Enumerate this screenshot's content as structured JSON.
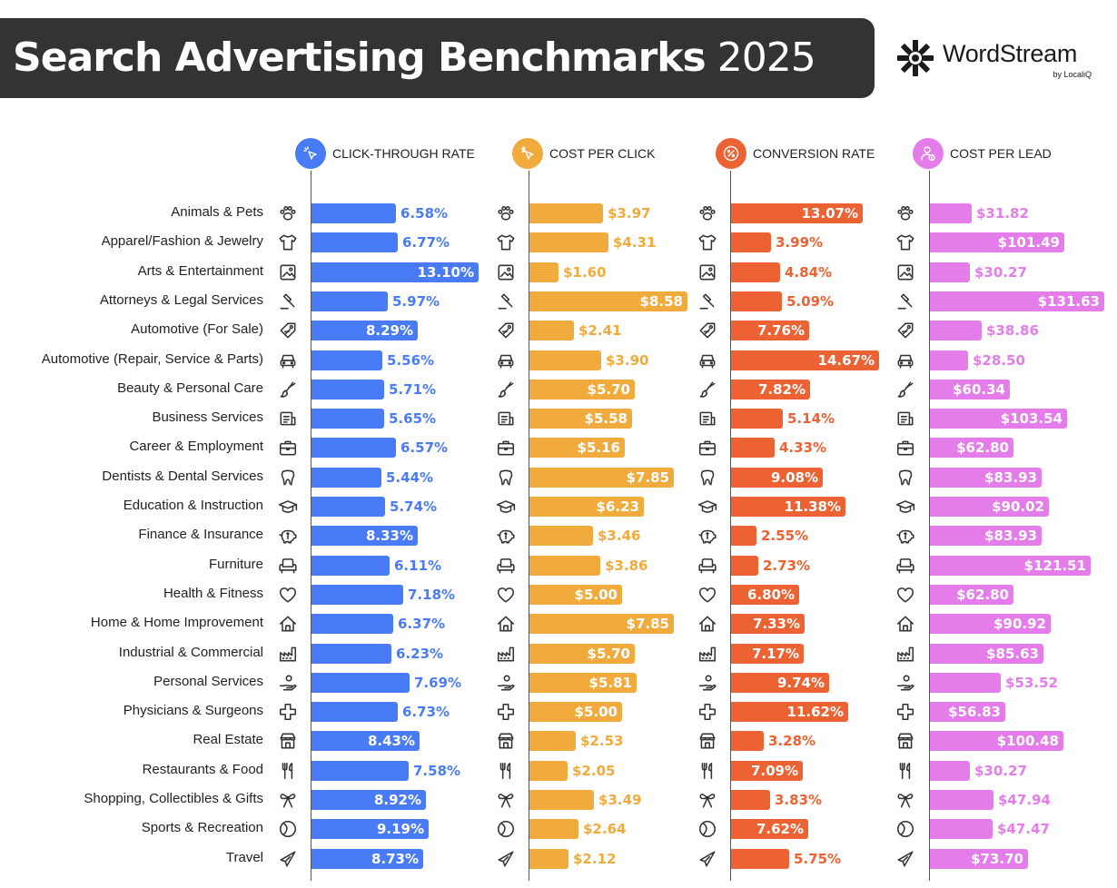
{
  "header": {
    "title_bold": "Search Advertising Benchmarks",
    "title_year": "2025",
    "logo_name": "WordStream",
    "logo_sub": "by LocaliQ"
  },
  "colors": {
    "header_bg": "#333333",
    "ctr": "#4a7bf7",
    "cpc": "#f0ab3c",
    "cr": "#ec6232",
    "cpl": "#e47de9"
  },
  "chart_data": {
    "type": "bar",
    "orientation": "horizontal",
    "title": "Search Advertising Benchmarks 2025",
    "categories": [
      "Animals & Pets",
      "Apparel/Fashion & Jewelry",
      "Arts & Entertainment",
      "Attorneys & Legal Services",
      "Automotive (For Sale)",
      "Automotive (Repair, Service & Parts)",
      "Beauty & Personal Care",
      "Business Services",
      "Career & Employment",
      "Dentists & Dental Services",
      "Education & Instruction",
      "Finance & Insurance",
      "Furniture",
      "Health & Fitness",
      "Home & Home Improvement",
      "Industrial & Commercial",
      "Personal Services",
      "Physicians & Surgeons",
      "Real Estate",
      "Restaurants & Food",
      "Shopping, Collectibles & Gifts",
      "Sports & Recreation",
      "Travel"
    ],
    "category_icons": [
      "paw-icon",
      "tshirt-icon",
      "picture-icon",
      "gavel-icon",
      "price-tag-icon",
      "car-icon",
      "brush-icon",
      "document-icon",
      "briefcase-icon",
      "tooth-icon",
      "graduation-cap-icon",
      "piggy-bank-icon",
      "armchair-icon",
      "heart-icon",
      "house-icon",
      "factory-icon",
      "hand-icon",
      "medical-cross-icon",
      "storefront-icon",
      "utensils-icon",
      "gift-bow-icon",
      "ball-icon",
      "airplane-icon"
    ],
    "series": [
      {
        "name": "CLICK-THROUGH RATE",
        "key": "ctr",
        "icon": "click-cursor-icon",
        "unit": "%",
        "values": [
          6.58,
          6.77,
          13.1,
          5.97,
          8.29,
          5.56,
          5.71,
          5.65,
          6.57,
          5.44,
          5.74,
          8.33,
          6.11,
          7.18,
          6.37,
          6.23,
          7.69,
          6.73,
          8.43,
          7.58,
          8.92,
          9.19,
          8.73
        ],
        "labels": [
          "6.58%",
          "6.77%",
          "13.10%",
          "5.97%",
          "8.29%",
          "5.56%",
          "5.71%",
          "5.65%",
          "6.57%",
          "5.44%",
          "5.74%",
          "8.33%",
          "6.11%",
          "7.18%",
          "6.37%",
          "6.23%",
          "7.69%",
          "6.73%",
          "8.43%",
          "7.58%",
          "8.92%",
          "9.19%",
          "8.73%"
        ]
      },
      {
        "name": "COST PER CLICK",
        "key": "cpc",
        "icon": "click-dollar-icon",
        "unit": "$",
        "values": [
          3.97,
          4.31,
          1.6,
          8.58,
          2.41,
          3.9,
          5.7,
          5.58,
          5.16,
          7.85,
          6.23,
          3.46,
          3.86,
          5.0,
          7.85,
          5.7,
          5.81,
          5.0,
          2.53,
          2.05,
          3.49,
          2.64,
          2.12
        ],
        "labels": [
          "$3.97",
          "$4.31",
          "$1.60",
          "$8.58",
          "$2.41",
          "$3.90",
          "$5.70",
          "$5.58",
          "$5.16",
          "$7.85",
          "$6.23",
          "$3.46",
          "$3.86",
          "$5.00",
          "$7.85",
          "$5.70",
          "$5.81",
          "$5.00",
          "$2.53",
          "$2.05",
          "$3.49",
          "$2.64",
          "$2.12"
        ]
      },
      {
        "name": "CONVERSION RATE",
        "key": "cr",
        "icon": "percent-icon",
        "unit": "%",
        "values": [
          13.07,
          3.99,
          4.84,
          5.09,
          7.76,
          14.67,
          7.82,
          5.14,
          4.33,
          9.08,
          11.38,
          2.55,
          2.73,
          6.8,
          7.33,
          7.17,
          9.74,
          11.62,
          3.28,
          7.09,
          3.83,
          7.62,
          5.75
        ],
        "labels": [
          "13.07%",
          "3.99%",
          "4.84%",
          "5.09%",
          "7.76%",
          "14.67%",
          "7.82%",
          "5.14%",
          "4.33%",
          "9.08%",
          "11.38%",
          "2.55%",
          "2.73%",
          "6.80%",
          "7.33%",
          "7.17%",
          "9.74%",
          "11.62%",
          "3.28%",
          "7.09%",
          "3.83%",
          "7.62%",
          "5.75%"
        ]
      },
      {
        "name": "COST PER LEAD",
        "key": "cpl",
        "icon": "user-dollar-icon",
        "unit": "$",
        "values": [
          31.82,
          101.49,
          30.27,
          131.63,
          38.86,
          28.5,
          60.34,
          103.54,
          62.8,
          83.93,
          90.02,
          83.93,
          121.51,
          62.8,
          90.92,
          85.63,
          53.52,
          56.83,
          100.48,
          30.27,
          47.94,
          47.47,
          73.7
        ],
        "labels": [
          "$31.82",
          "$101.49",
          "$30.27",
          "$131.63",
          "$38.86",
          "$28.50",
          "$60.34",
          "$103.54",
          "$62.80",
          "$83.93",
          "$90.02",
          "$83.93",
          "$121.51",
          "$62.80",
          "$90.92",
          "$85.63",
          "$53.52",
          "$56.83",
          "$100.48",
          "$30.27",
          "$47.94",
          "$47.47",
          "$73.70"
        ]
      }
    ],
    "grid": false,
    "legend": "column headers at top"
  }
}
